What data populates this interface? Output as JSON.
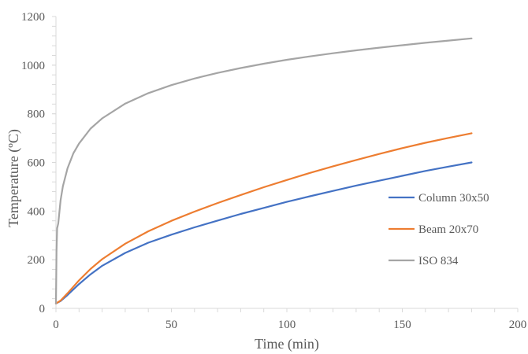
{
  "chart_data": {
    "type": "line",
    "title": "",
    "xlabel": "Time (min)",
    "ylabel": "Temperature (ºC)",
    "xlim": [
      0,
      200
    ],
    "ylim": [
      0,
      1200
    ],
    "xticks": [
      0,
      50,
      100,
      150,
      200
    ],
    "yticks": [
      0,
      200,
      400,
      600,
      800,
      1000,
      1200
    ],
    "grid": false,
    "legend_position": "right",
    "series": [
      {
        "name": "Column 30x50",
        "color": "#4472C4",
        "x": [
          0,
          2,
          5,
          10,
          15,
          20,
          30,
          40,
          50,
          60,
          70,
          80,
          90,
          100,
          110,
          120,
          130,
          140,
          150,
          160,
          170,
          180
        ],
        "y": [
          20,
          30,
          55,
          100,
          140,
          175,
          228,
          270,
          303,
          333,
          361,
          388,
          413,
          438,
          461,
          483,
          505,
          525,
          545,
          565,
          583,
          600
        ]
      },
      {
        "name": "Beam 20x70",
        "color": "#ED7D31",
        "x": [
          0,
          2,
          5,
          10,
          15,
          20,
          30,
          40,
          50,
          60,
          70,
          80,
          90,
          100,
          110,
          120,
          130,
          140,
          150,
          160,
          170,
          180
        ],
        "y": [
          20,
          32,
          62,
          115,
          162,
          202,
          266,
          317,
          360,
          398,
          433,
          466,
          498,
          528,
          557,
          584,
          610,
          635,
          659,
          681,
          701,
          720
        ]
      },
      {
        "name": "ISO 834",
        "color": "#A5A5A5",
        "x": [
          0,
          0.25,
          0.5,
          1,
          2,
          3,
          5,
          7.5,
          10,
          15,
          20,
          30,
          40,
          50,
          60,
          70,
          80,
          90,
          100,
          110,
          120,
          130,
          140,
          150,
          160,
          170,
          180
        ],
        "y": [
          20,
          233,
          329,
          349,
          445,
          502,
          576,
          637,
          678,
          739,
          781,
          842,
          885,
          918,
          945,
          968,
          988,
          1006,
          1022,
          1036,
          1049,
          1061,
          1072,
          1082,
          1092,
          1101,
          1110
        ]
      }
    ]
  }
}
